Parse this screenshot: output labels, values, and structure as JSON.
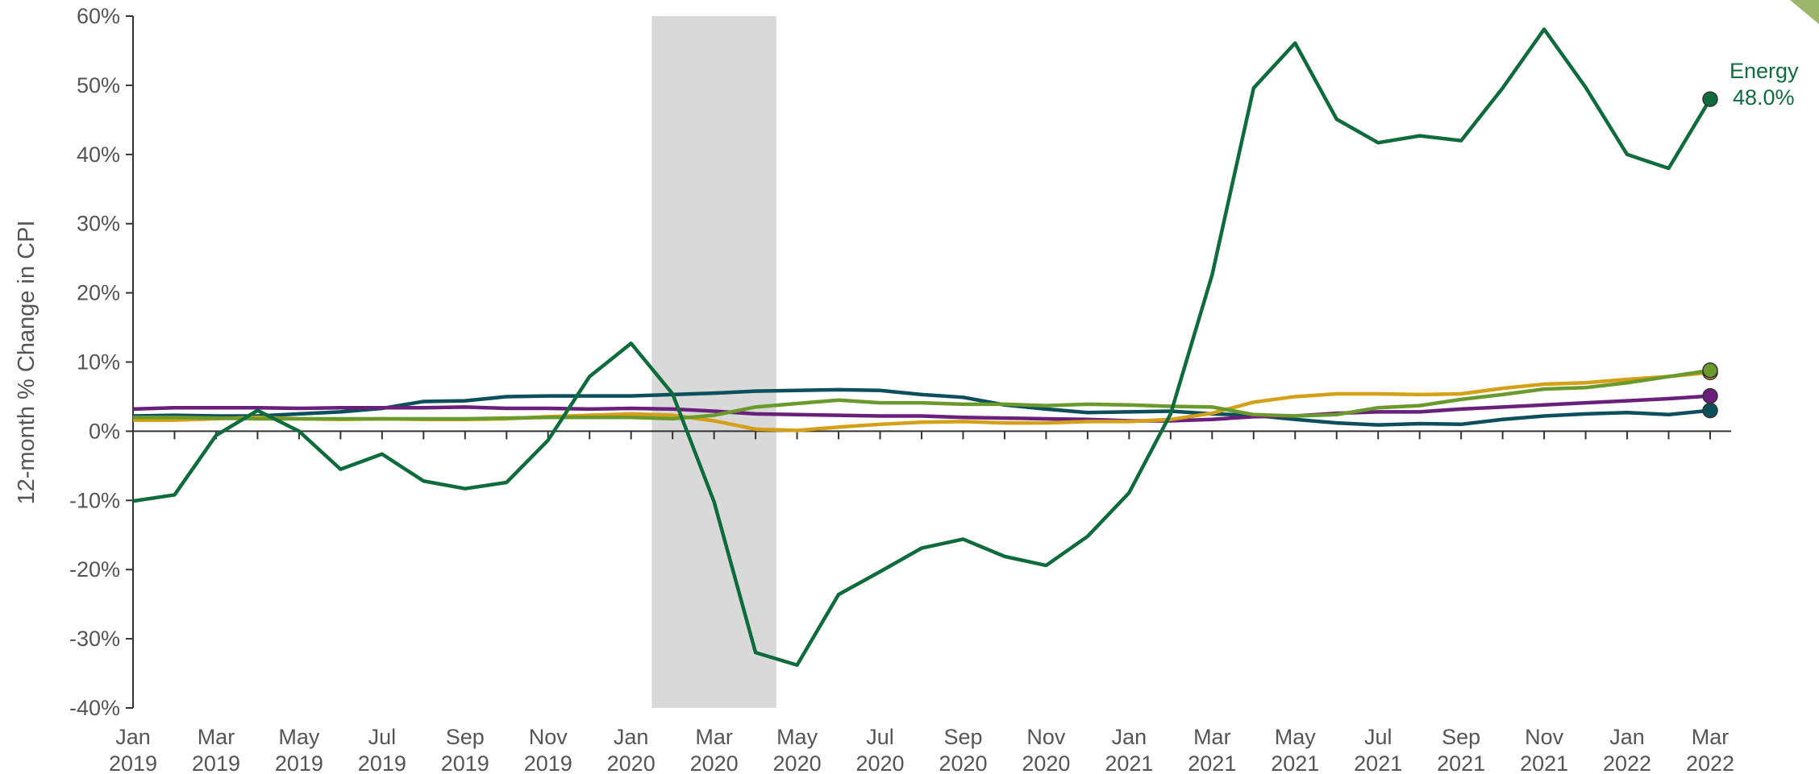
{
  "chart_data": {
    "type": "line",
    "y_label": "12-month % Change in CPI",
    "categories": [
      "Jan 2019",
      null,
      "Mar 2019",
      null,
      "May 2019",
      null,
      "Jul 2019",
      null,
      "Sep 2019",
      null,
      "Nov 2019",
      null,
      "Jan 2020",
      null,
      "Mar 2020",
      null,
      "May 2020",
      null,
      "Jul 2020",
      null,
      "Sep 2020",
      null,
      "Nov 2020",
      null,
      "Jan 2021",
      null,
      "Mar 2021",
      null,
      "May 2021",
      null,
      "Jul 2021",
      null,
      "Sep 2021",
      null,
      "Nov 2021",
      null,
      "Jan 2022",
      null,
      "Mar 2022"
    ],
    "shaded_range": [
      13,
      15
    ],
    "ylim": [
      -40,
      60
    ],
    "yticks": [
      {
        "value": -40,
        "label": "-40%"
      },
      {
        "value": -30,
        "label": "-30%"
      },
      {
        "value": -20,
        "label": "-20%"
      },
      {
        "value": -10,
        "label": "-10%"
      },
      {
        "value": 0,
        "label": "0%"
      },
      {
        "value": 10,
        "label": "10%"
      },
      {
        "value": 20,
        "label": "20%"
      },
      {
        "value": 30,
        "label": "30%"
      },
      {
        "value": 40,
        "label": "40%"
      },
      {
        "value": 50,
        "label": "50%"
      },
      {
        "value": 60,
        "label": "60%"
      }
    ],
    "series": [
      {
        "name": "Energy",
        "color": "#0e6b3c",
        "values": [
          -10.1,
          -9.2,
          -0.6,
          3.0,
          0,
          -5.5,
          -3.3,
          -7.2,
          -8.3,
          -7.4,
          -1.3,
          7.9,
          12.7,
          5.4,
          -10.2,
          -32.0,
          -33.8,
          -23.6,
          -20.3,
          -16.9,
          -15.6,
          -18.1,
          -19.4,
          -15.2,
          -8.9,
          2.5,
          22.6,
          49.6,
          56.1,
          45.1,
          41.7,
          42.7,
          42.0,
          49.6,
          58.1,
          49.7,
          40.0,
          38.0,
          48.0
        ],
        "value_labels": [
          null,
          null,
          null,
          null,
          null,
          null,
          null,
          null,
          null,
          null,
          null,
          null,
          null,
          null,
          null,
          null,
          null,
          null,
          null,
          null,
          null,
          null,
          null,
          null,
          null,
          null,
          null,
          null,
          null,
          null,
          null,
          null,
          null,
          null,
          null,
          null,
          null,
          null,
          "48.0%"
        ]
      },
      {
        "color": "#6a9a2c",
        "values": [
          2.0,
          2.0,
          1.9,
          1.8,
          1.8,
          1.8,
          1.8,
          1.8,
          1.8,
          1.9,
          2.0,
          2.0,
          2.0,
          1.8,
          2.3,
          3.5,
          4.0,
          4.5,
          4.1,
          4.1,
          3.9,
          3.9,
          3.7,
          3.9,
          3.8,
          3.6,
          3.5,
          2.4,
          2.2,
          2.4,
          3.4,
          3.7,
          4.6,
          5.3,
          6.1,
          6.3,
          7.0,
          7.9,
          8.8
        ]
      },
      {
        "color": "#d4a017",
        "values": [
          1.6,
          1.6,
          1.8,
          2.0,
          1.8,
          1.7,
          1.8,
          1.7,
          1.7,
          1.8,
          2.1,
          2.3,
          2.5,
          2.3,
          1.5,
          0.3,
          0.1,
          0.6,
          1.0,
          1.3,
          1.4,
          1.2,
          1.2,
          1.4,
          1.4,
          1.7,
          2.6,
          4.2,
          5.0,
          5.4,
          5.4,
          5.3,
          5.4,
          6.2,
          6.8,
          7.0,
          7.5,
          7.9,
          8.5
        ]
      },
      {
        "color": "#6a1f7a",
        "values": [
          3.2,
          3.4,
          3.4,
          3.4,
          3.3,
          3.4,
          3.4,
          3.4,
          3.5,
          3.3,
          3.3,
          3.2,
          3.3,
          3.2,
          2.9,
          2.5,
          2.4,
          2.3,
          2.2,
          2.2,
          2.0,
          1.9,
          1.8,
          1.7,
          1.5,
          1.5,
          1.7,
          2.1,
          2.2,
          2.6,
          2.8,
          2.8,
          3.2,
          3.5,
          3.8,
          4.1,
          4.4,
          4.7,
          5.1
        ]
      },
      {
        "color": "#0b4f5c",
        "values": [
          2.2,
          2.3,
          2.2,
          2.2,
          2.5,
          2.8,
          3.3,
          4.3,
          4.4,
          5.0,
          5.1,
          5.1,
          5.1,
          5.3,
          5.5,
          5.8,
          5.9,
          6.0,
          5.9,
          5.3,
          4.9,
          3.8,
          3.2,
          2.7,
          2.8,
          2.9,
          2.5,
          2.3,
          1.7,
          1.2,
          0.9,
          1.1,
          1.0,
          1.7,
          2.2,
          2.5,
          2.7,
          2.4,
          3.0
        ]
      }
    ]
  }
}
